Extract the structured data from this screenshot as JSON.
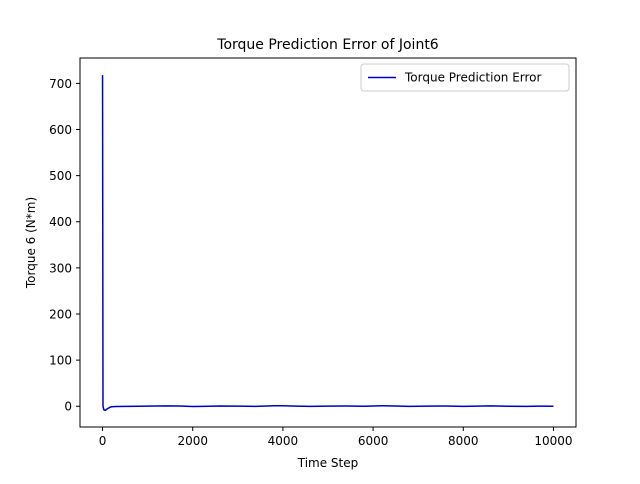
{
  "chart_data": {
    "type": "line",
    "title": "Torque Prediction Error of Joint6",
    "xlabel": "Time Step",
    "ylabel": "Torque 6 (N*m)",
    "xlim": [
      -500,
      10500
    ],
    "ylim": [
      -45,
      755
    ],
    "xticks": [
      0,
      2000,
      4000,
      6000,
      8000,
      10000
    ],
    "yticks": [
      0,
      100,
      200,
      300,
      400,
      500,
      600,
      700
    ],
    "xtick_labels": [
      "0",
      "2000",
      "4000",
      "6000",
      "8000",
      "10000"
    ],
    "ytick_labels": [
      "0",
      "100",
      "200",
      "300",
      "400",
      "500",
      "600",
      "700"
    ],
    "grid": false,
    "legend_position": "top-right",
    "series": [
      {
        "name": "Torque Prediction Error",
        "color": "#0000cc",
        "x": [
          0,
          10,
          30,
          60,
          100,
          150,
          200,
          300,
          500,
          800,
          1000,
          1400,
          1700,
          2000,
          2200,
          2600,
          3000,
          3400,
          3800,
          4000,
          4300,
          4600,
          5000,
          5400,
          5800,
          6200,
          6500,
          6800,
          7200,
          7600,
          8000,
          8300,
          8600,
          9000,
          9400,
          9700,
          10000
        ],
        "values": [
          718,
          0,
          -8,
          -9,
          -6,
          -3,
          -1,
          -0.5,
          -0.3,
          0,
          0.2,
          0.8,
          0.4,
          -0.5,
          -0.2,
          0.5,
          0.3,
          -0.3,
          1.2,
          1.0,
          0.2,
          -0.2,
          0.3,
          0.4,
          -0.1,
          1.0,
          0.6,
          -0.3,
          0.2,
          0.4,
          -0.2,
          0.3,
          0.8,
          0.0,
          -0.2,
          0.2,
          0.0
        ]
      }
    ]
  }
}
